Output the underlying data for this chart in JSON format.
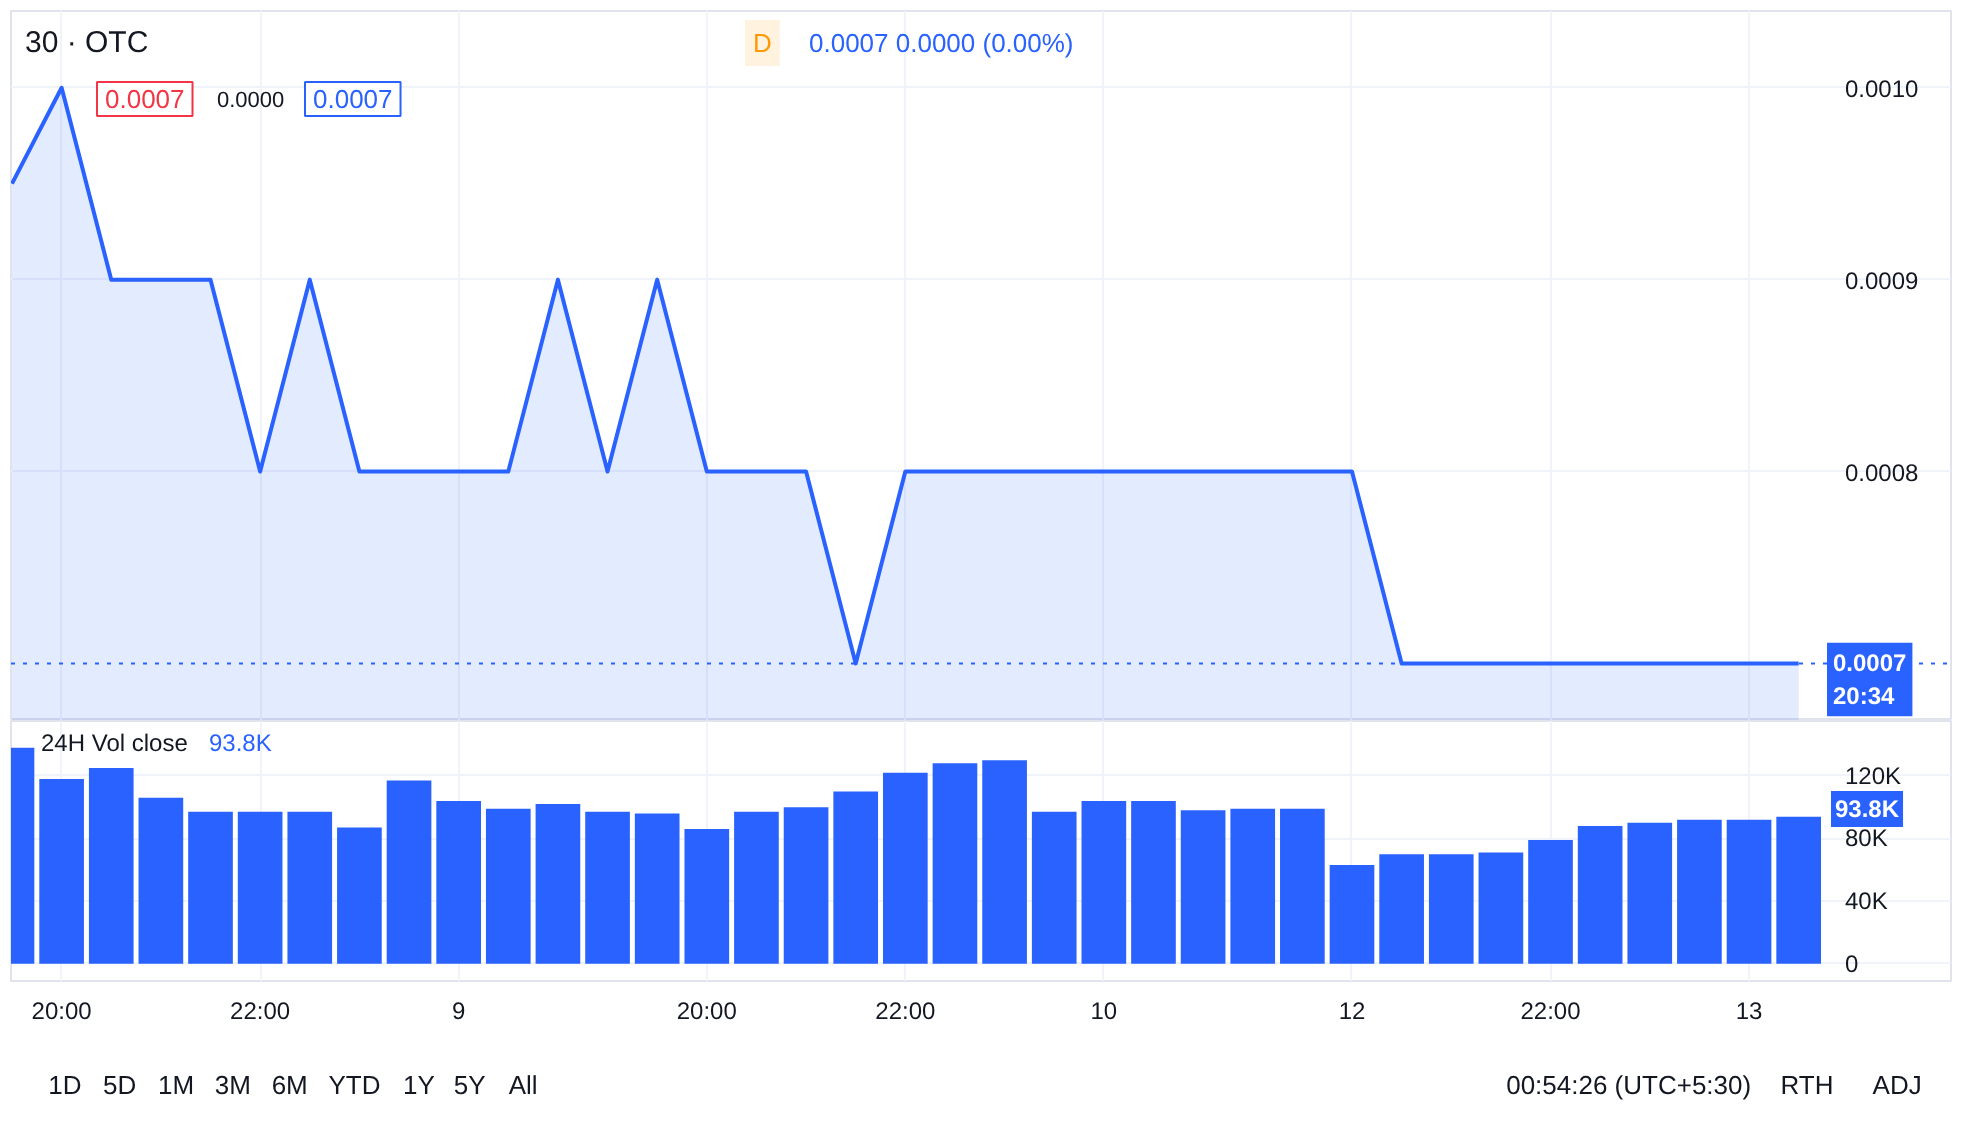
{
  "chart_data": [
    {
      "type": "area",
      "title": "30 · OTC",
      "annotations": [
        "D",
        "0.0007 0.0000 (0.00%)",
        "0.0007",
        "0.0000",
        "0.0007"
      ],
      "categories": [
        null,
        null,
        null,
        null,
        null,
        null,
        null,
        null,
        null,
        null,
        null,
        null,
        null,
        null,
        null,
        null,
        null,
        null,
        null,
        null,
        null,
        null,
        null,
        null,
        null,
        null,
        null,
        null,
        null,
        null,
        null,
        null,
        null,
        null,
        null,
        null,
        null
      ],
      "series": [
        {
          "color": "#2962ff",
          "values": [
            0.00095,
            0.001,
            0.0009,
            0.0009,
            0.0009,
            0.0008,
            0.0009,
            0.0008,
            0.0008,
            0.0008,
            0.0008,
            0.0009,
            0.0008,
            0.0009,
            0.0008,
            0.0008,
            0.0008,
            0.0007,
            0.0008,
            0.0008,
            0.0008,
            0.0008,
            0.0008,
            0.0008,
            0.0008,
            0.0008,
            0.0008,
            0.0008,
            0.0007,
            0.0007,
            0.0007,
            0.0007,
            0.0007,
            0.0007,
            0.0007,
            0.0007,
            0.0007
          ]
        }
      ],
      "ylim": [
        0.00067,
        0.00104
      ],
      "yticks": [
        {
          "value": 0.0008,
          "label": "0.0008"
        },
        {
          "value": 0.0009,
          "label": "0.0009"
        },
        {
          "value": 0.001,
          "label": "0.0010"
        }
      ],
      "ref_lines": [
        {
          "axis": "y",
          "value": 0.0007,
          "label": "0.0007\n20:34",
          "color": "#2962ff",
          "line_style": "dotted"
        }
      ],
      "grid": true
    },
    {
      "type": "bar",
      "title": "24H Vol close",
      "subtitle": "93.8K",
      "categories": [
        null,
        "20:00",
        null,
        null,
        null,
        "22:00",
        null,
        null,
        null,
        "9",
        null,
        null,
        null,
        null,
        "20:00",
        null,
        null,
        null,
        "22:00",
        null,
        null,
        null,
        "10",
        null,
        null,
        null,
        null,
        "12",
        null,
        null,
        null,
        "22:00",
        null,
        null,
        null,
        "13",
        null
      ],
      "values": [
        138000,
        118000,
        125000,
        106000,
        97000,
        97000,
        97000,
        87000,
        117000,
        104000,
        99000,
        102000,
        97000,
        96000,
        86000,
        97000,
        100000,
        110000,
        122000,
        128000,
        130000,
        97000,
        104000,
        104000,
        98000,
        99000,
        99000,
        63000,
        70000,
        70000,
        71000,
        79000,
        88000,
        90000,
        92000,
        92000,
        93800
      ],
      "color": "#2962ff",
      "ylim": [
        -11000,
        155000
      ],
      "yticks": [
        {
          "value": 0,
          "label": "0"
        },
        {
          "value": 40000,
          "label": "40K"
        },
        {
          "value": 80000,
          "label": "80K"
        },
        {
          "value": 120000,
          "label": "120K"
        }
      ],
      "grid": true,
      "annotations": [
        "1D",
        "5D",
        "1M",
        "3M",
        "6M",
        "YTD",
        "1Y",
        "5Y",
        "All",
        "00:54:26 (UTC+5:30)",
        "RTH",
        "ADJ",
        "93.8K"
      ]
    }
  ]
}
